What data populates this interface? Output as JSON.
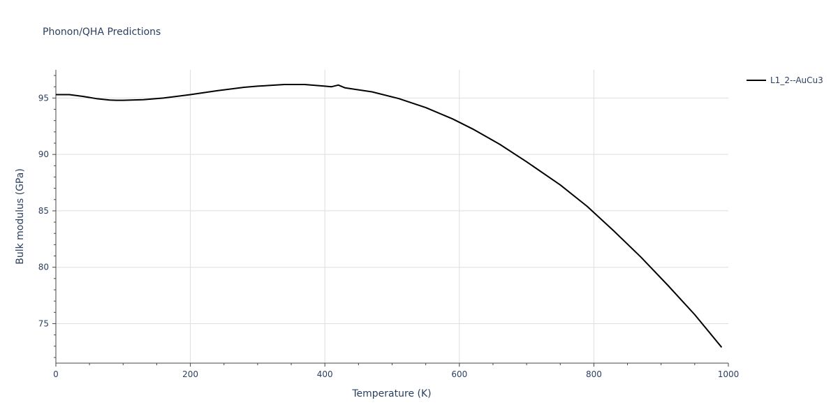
{
  "chart_data": {
    "type": "line",
    "title": "Phonon/QHA Predictions",
    "xlabel": "Temperature (K)",
    "ylabel": "Bulk modulus (GPa)",
    "xlim": [
      0,
      1000
    ],
    "ylim": [
      71.5,
      97.5
    ],
    "x_ticks": [
      0,
      200,
      400,
      600,
      800,
      1000
    ],
    "y_ticks": [
      75,
      80,
      85,
      90,
      95
    ],
    "grid": true,
    "legend_position": "top-right",
    "series": [
      {
        "name": "L1_2--AuCu3",
        "color": "#000000",
        "x": [
          0,
          20,
          40,
          60,
          80,
          90,
          100,
          130,
          160,
          200,
          240,
          280,
          300,
          340,
          370,
          400,
          410,
          420,
          430,
          470,
          510,
          550,
          590,
          620,
          660,
          700,
          750,
          790,
          830,
          870,
          910,
          950,
          990
        ],
        "y": [
          95.3,
          95.3,
          95.15,
          94.95,
          94.82,
          94.8,
          94.8,
          94.85,
          95.0,
          95.3,
          95.65,
          95.95,
          96.05,
          96.2,
          96.2,
          96.05,
          96.0,
          96.15,
          95.9,
          95.55,
          94.95,
          94.15,
          93.15,
          92.25,
          90.9,
          89.35,
          87.3,
          85.4,
          83.2,
          80.9,
          78.4,
          75.8,
          72.9
        ]
      }
    ]
  }
}
